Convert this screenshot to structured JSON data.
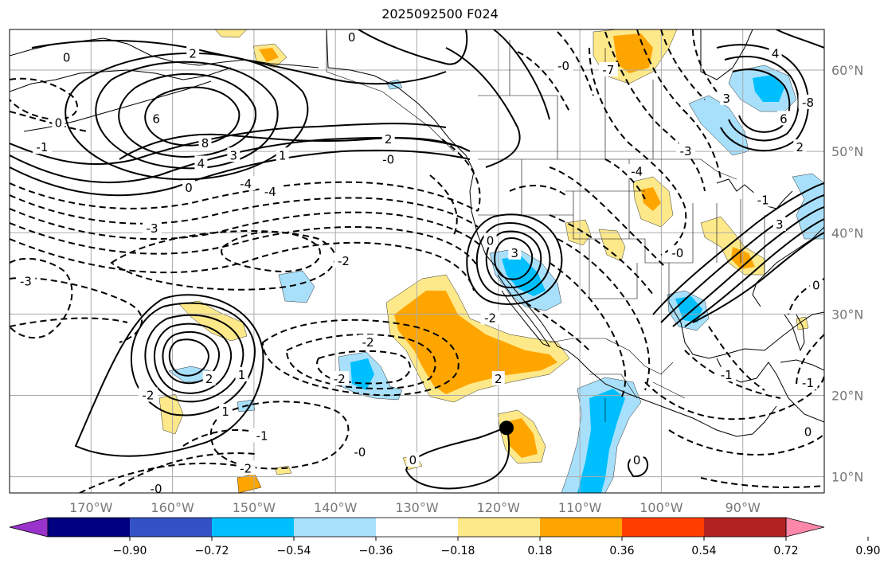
{
  "title": "2025092500 F024",
  "map": {
    "lon_range": [
      -180,
      -80
    ],
    "lat_range": [
      8,
      65
    ],
    "grid": true,
    "lon_ticks": [
      {
        "value": -170,
        "label": "170°W"
      },
      {
        "value": -160,
        "label": "160°W"
      },
      {
        "value": -150,
        "label": "150°W"
      },
      {
        "value": -140,
        "label": "140°W"
      },
      {
        "value": -130,
        "label": "130°W"
      },
      {
        "value": -120,
        "label": "120°W"
      },
      {
        "value": -110,
        "label": "110°W"
      },
      {
        "value": -100,
        "label": "100°W"
      },
      {
        "value": -90,
        "label": "90°W"
      }
    ],
    "lat_ticks": [
      {
        "value": 10,
        "label": "10°N"
      },
      {
        "value": 20,
        "label": "20°N"
      },
      {
        "value": 30,
        "label": "30°N"
      },
      {
        "value": 40,
        "label": "40°N"
      },
      {
        "value": 50,
        "label": "50°N"
      },
      {
        "value": 60,
        "label": "60°N"
      }
    ],
    "marker": {
      "lon": -119,
      "lat": 16
    }
  },
  "contour_labels": [
    {
      "text": "0",
      "lon": -173,
      "lat": 61.5
    },
    {
      "text": "2",
      "lon": -157.5,
      "lat": 62
    },
    {
      "text": "0",
      "lon": -174,
      "lat": 53.5
    },
    {
      "text": "-1",
      "lon": -176,
      "lat": 50.5
    },
    {
      "text": "6",
      "lon": -162,
      "lat": 54
    },
    {
      "text": "8",
      "lon": -156,
      "lat": 51
    },
    {
      "text": "4",
      "lon": -156.5,
      "lat": 48.5
    },
    {
      "text": "3",
      "lon": -152.5,
      "lat": 49.5
    },
    {
      "text": "1",
      "lon": -146.5,
      "lat": 49.5
    },
    {
      "text": "-4",
      "lon": -151,
      "lat": 46
    },
    {
      "text": "-4",
      "lon": -148,
      "lat": 45
    },
    {
      "text": "0",
      "lon": -158,
      "lat": 45.5
    },
    {
      "text": "-3",
      "lon": -162.5,
      "lat": 40.5
    },
    {
      "text": "2",
      "lon": -133.5,
      "lat": 51.5
    },
    {
      "text": "-0",
      "lon": -133.5,
      "lat": 49
    },
    {
      "text": "0",
      "lon": -138,
      "lat": 64
    },
    {
      "text": "-2",
      "lon": -139,
      "lat": 36.5
    },
    {
      "text": "-3",
      "lon": -178,
      "lat": 34
    },
    {
      "text": "3",
      "lon": -118,
      "lat": 37.5
    },
    {
      "text": "0",
      "lon": -121,
      "lat": 39
    },
    {
      "text": "-2",
      "lon": -121,
      "lat": 29.5
    },
    {
      "text": "-2",
      "lon": -136,
      "lat": 26.5
    },
    {
      "text": "-2",
      "lon": -139.5,
      "lat": 22
    },
    {
      "text": "2",
      "lon": -120,
      "lat": 22
    },
    {
      "text": "-2",
      "lon": -163,
      "lat": 20
    },
    {
      "text": "2",
      "lon": -155.5,
      "lat": 22
    },
    {
      "text": "1",
      "lon": -151.5,
      "lat": 22.5
    },
    {
      "text": "1",
      "lon": -153.5,
      "lat": 18
    },
    {
      "text": "-1",
      "lon": -149,
      "lat": 15
    },
    {
      "text": "-2",
      "lon": -151,
      "lat": 11
    },
    {
      "text": "0",
      "lon": -130.5,
      "lat": 12
    },
    {
      "text": "-0",
      "lon": -137,
      "lat": 13
    },
    {
      "text": "-0",
      "lon": -162,
      "lat": 8.5
    },
    {
      "text": "0",
      "lon": -103,
      "lat": 12
    },
    {
      "text": "-4",
      "lon": -103,
      "lat": 47.5
    },
    {
      "text": "-3",
      "lon": -97,
      "lat": 50
    },
    {
      "text": "-0",
      "lon": -98,
      "lat": 37.5
    },
    {
      "text": "-0",
      "lon": -112,
      "lat": 60.5
    },
    {
      "text": "-7",
      "lon": -106.5,
      "lat": 60
    },
    {
      "text": "3",
      "lon": -92,
      "lat": 56.5
    },
    {
      "text": "4",
      "lon": -86,
      "lat": 62
    },
    {
      "text": "6",
      "lon": -85,
      "lat": 54
    },
    {
      "text": "-8",
      "lon": -82,
      "lat": 56
    },
    {
      "text": "2",
      "lon": -83,
      "lat": 50.5
    },
    {
      "text": "3",
      "lon": -85.5,
      "lat": 41
    },
    {
      "text": "-1",
      "lon": -87.5,
      "lat": 44
    },
    {
      "text": "-1",
      "lon": -92,
      "lat": 22.5
    },
    {
      "text": "-1",
      "lon": -82,
      "lat": 21.5
    },
    {
      "text": "0",
      "lon": -81,
      "lat": 33.5
    },
    {
      "text": "0",
      "lon": -82,
      "lat": 15.5
    }
  ],
  "colorbar": {
    "colors": [
      "#9a33cc",
      "#000080",
      "#3452c6",
      "#00bfff",
      "#a8e0fb",
      "#ffffff",
      "#fde98a",
      "#ffa500",
      "#ff3d00",
      "#b22222",
      "#ff88aa"
    ],
    "tick_labels": [
      "−0.90",
      "−0.72",
      "−0.54",
      "−0.36",
      "−0.18",
      "0.18",
      "0.36",
      "0.54",
      "0.72",
      "0.90"
    ]
  },
  "styles": {
    "fill_light": "#fde98a",
    "fill_orange": "#ffa500",
    "fill_lightblue": "#a8e0fb",
    "fill_blue": "#00bfff",
    "grid": "#aaaaaa"
  }
}
